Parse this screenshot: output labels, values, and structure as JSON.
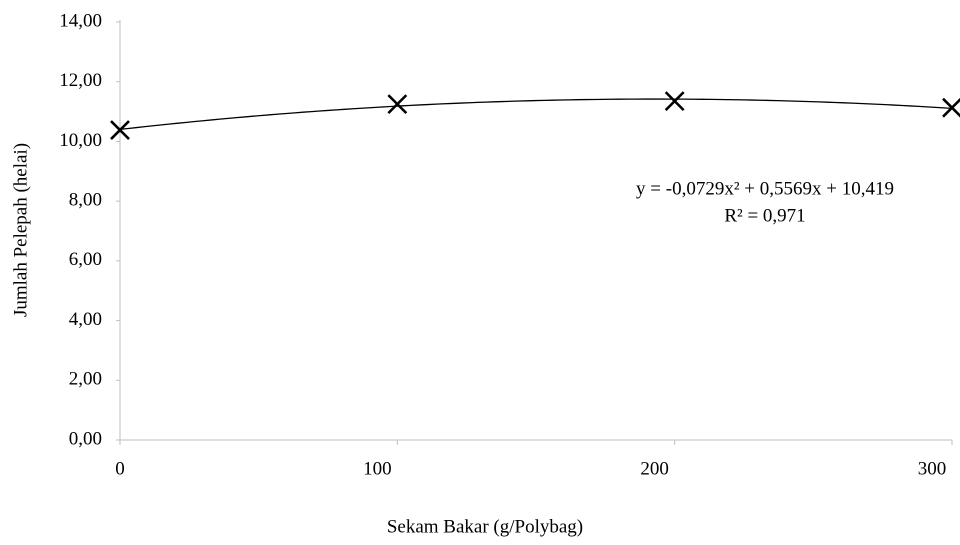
{
  "chart_data": {
    "type": "scatter",
    "marker": "x",
    "color": "#000000",
    "trendline": "polynomial",
    "x": [
      0,
      100,
      200,
      300
    ],
    "values": [
      10.38,
      11.25,
      11.35,
      11.13
    ],
    "xlim": [
      0,
      300
    ],
    "xticks": [
      0,
      100,
      200,
      300
    ],
    "ylim": [
      0,
      14
    ],
    "yticks": [
      {
        "value": 0,
        "label": "0,00"
      },
      {
        "value": 2,
        "label": "2,00"
      },
      {
        "value": 4,
        "label": "4,00"
      },
      {
        "value": 6,
        "label": "6,00"
      },
      {
        "value": 8,
        "label": "8,00"
      },
      {
        "value": 10,
        "label": "10,00"
      },
      {
        "value": 12,
        "label": "12,00"
      },
      {
        "value": 14,
        "label": "14,00"
      }
    ],
    "grid": false,
    "xlabel": "Sekam Bakar (g/Polybag)",
    "ylabel": "Jumlah Pelepah (helai)",
    "annotations": [
      "y = -0,0729x² + 0,5569x + 10,419",
      "R² = 0,971"
    ]
  }
}
